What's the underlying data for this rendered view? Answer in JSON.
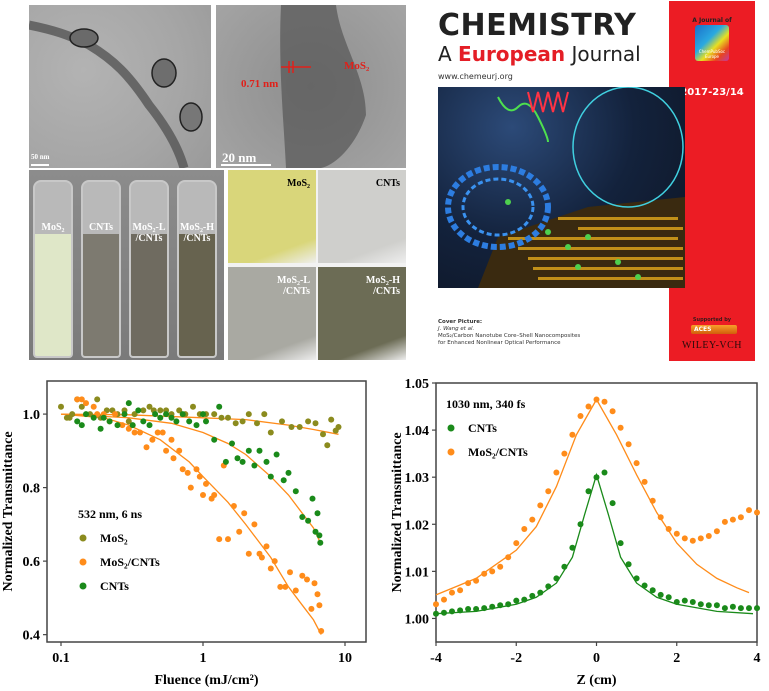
{
  "tem_images": {
    "left": {
      "scale_bar": "50 nm"
    },
    "right": {
      "scale_bar": "20 nm",
      "spacing_label": "0.71 nm",
      "material_label": "MoS₂"
    }
  },
  "vials": [
    {
      "label_line1": "MoS₂",
      "label_line2": "",
      "liquid": "#dfe7c8"
    },
    {
      "label_line1": "CNTs",
      "label_line2": "",
      "liquid": "#7d7a70"
    },
    {
      "label_line1": "MoS₂-L",
      "label_line2": "/CNTs",
      "liquid": "#6f6b60"
    },
    {
      "label_line1": "MoS₂-H",
      "label_line2": "/CNTs",
      "liquid": "#67634f"
    }
  ],
  "films": [
    {
      "label_line1": "MoS₂",
      "label_line2": "",
      "color": "#d9d67a"
    },
    {
      "label_line1": "CNTs",
      "label_line2": "",
      "color": "#cfcfcc"
    },
    {
      "label_line1": "MoS₂-L",
      "label_line2": "/CNTs",
      "color": "#a9a9a2"
    },
    {
      "label_line1": "MoS₂-H",
      "label_line2": "/CNTs",
      "color": "#6c6c55"
    }
  ],
  "cover": {
    "title": "CHEMISTRY",
    "subtitle_a": "A ",
    "subtitle_b": "European",
    "subtitle_c": " Journal",
    "url": "www.chemeurj.org",
    "journal_of": "A Journal of",
    "society": "ChemPubSoc Europe",
    "issue": "2017-23/14",
    "credit_heading": "Cover Picture:",
    "credit_author": "J. Wang et al.",
    "credit_title_1": "MoS₂/Carbon Nanotube Core–Shell Nanocomposites",
    "credit_title_2": "for Enhanced Nonlinear Optical Performance",
    "supported_by": "Supported by",
    "aces": "ACES",
    "publisher": "WILEY-VCH",
    "accent": "#ec1c24"
  },
  "chart_data": [
    {
      "type": "scatter",
      "title": "532 nm, 6 ns",
      "xlabel": "Fluence (mJ/cm²)",
      "ylabel": "Normalized Transmittance",
      "xscale": "log",
      "xlim": [
        0.085,
        14
      ],
      "ylim": [
        0.38,
        1.09
      ],
      "xticks": [
        0.1,
        1,
        10
      ],
      "xtick_labels": [
        "0.1",
        "1",
        "10"
      ],
      "yticks": [
        0.4,
        0.6,
        0.8,
        1.0
      ],
      "ytick_labels": [
        "0.4",
        "0.6",
        "0.8",
        "1.0"
      ],
      "legend_position": "middle-left",
      "series": [
        {
          "name": "MoS₂",
          "color": "#8b8b1e",
          "x": [
            0.1,
            0.11,
            0.115,
            0.12,
            0.13,
            0.14,
            0.16,
            0.18,
            0.19,
            0.21,
            0.23,
            0.25,
            0.28,
            0.3,
            0.33,
            0.38,
            0.42,
            0.45,
            0.5,
            0.55,
            0.6,
            0.68,
            0.75,
            0.85,
            0.95,
            1.05,
            1.2,
            1.35,
            1.5,
            1.7,
            1.9,
            2.1,
            2.4,
            2.7,
            3.0,
            3.6,
            4.2,
            4.8,
            5.5,
            6.2,
            7.0,
            7.5,
            8.0,
            8.6,
            9.0
          ],
          "y": [
            1.02,
            0.99,
            0.99,
            1.0,
            1.04,
            1.02,
            1.0,
            1.04,
            0.99,
            1.01,
            1.01,
            1.0,
            1.01,
            0.98,
            1.0,
            1.01,
            1.02,
            1.01,
            1.01,
            1.01,
            1.0,
            1.01,
            1.0,
            1.02,
            1.0,
            1.0,
            1.0,
            0.99,
            0.99,
            0.975,
            0.98,
            1.0,
            0.975,
            1.0,
            0.95,
            0.98,
            0.965,
            0.965,
            0.98,
            0.975,
            0.945,
            0.915,
            0.985,
            0.955,
            0.965
          ],
          "fit_x": [
            0.1,
            0.3,
            1,
            2,
            4,
            6,
            9
          ],
          "fit_y": [
            1.0,
            0.998,
            0.99,
            0.985,
            0.97,
            0.958,
            0.945
          ]
        },
        {
          "name": "MoS₂/CNTs",
          "color": "#ff8c1a",
          "x": [
            0.13,
            0.14,
            0.15,
            0.17,
            0.18,
            0.2,
            0.22,
            0.24,
            0.27,
            0.3,
            0.33,
            0.36,
            0.4,
            0.44,
            0.48,
            0.52,
            0.55,
            0.6,
            0.62,
            0.68,
            0.72,
            0.78,
            0.82,
            0.9,
            0.95,
            1.0,
            1.05,
            1.15,
            1.2,
            1.3,
            1.4,
            1.5,
            1.65,
            1.8,
            1.95,
            2.1,
            2.3,
            2.5,
            2.6,
            2.8,
            3.0,
            3.2,
            3.5,
            3.8,
            4.1,
            4.5,
            5.0,
            5.4,
            5.8,
            6.1,
            6.4,
            6.6,
            6.8
          ],
          "y": [
            1.04,
            1.04,
            1.03,
            1.02,
            1.0,
            1.0,
            0.98,
            1.0,
            0.97,
            0.96,
            0.95,
            0.95,
            0.91,
            0.93,
            0.95,
            0.95,
            0.9,
            0.93,
            0.88,
            0.9,
            0.85,
            0.84,
            0.8,
            0.85,
            0.83,
            0.78,
            0.81,
            0.77,
            0.78,
            0.66,
            0.86,
            0.66,
            0.75,
            0.68,
            0.73,
            0.62,
            0.7,
            0.62,
            0.61,
            0.64,
            0.58,
            0.6,
            0.53,
            0.53,
            0.57,
            0.52,
            0.56,
            0.55,
            0.47,
            0.54,
            0.51,
            0.48,
            0.41
          ],
          "fit_x": [
            0.1,
            0.2,
            0.3,
            0.5,
            0.8,
            1,
            1.5,
            2,
            3,
            4,
            5,
            6,
            6.8
          ],
          "fit_y": [
            1.0,
            0.99,
            0.97,
            0.93,
            0.87,
            0.83,
            0.76,
            0.7,
            0.61,
            0.53,
            0.48,
            0.44,
            0.4
          ]
        },
        {
          "name": "CNTs",
          "color": "#1a8a1a",
          "x": [
            0.13,
            0.14,
            0.15,
            0.17,
            0.19,
            0.2,
            0.22,
            0.25,
            0.28,
            0.3,
            0.32,
            0.35,
            0.38,
            0.42,
            0.46,
            0.5,
            0.55,
            0.6,
            0.65,
            0.72,
            0.8,
            0.9,
            1.0,
            1.05,
            1.2,
            1.3,
            1.45,
            1.6,
            1.75,
            1.9,
            2.1,
            2.3,
            2.5,
            2.8,
            3.0,
            3.3,
            3.7,
            4.0,
            4.5,
            5.0,
            5.5,
            5.9,
            6.2,
            6.4,
            6.6,
            6.7
          ],
          "y": [
            0.98,
            0.97,
            1.0,
            0.99,
            0.96,
            0.99,
            0.98,
            0.97,
            1.0,
            1.03,
            0.97,
            1.01,
            0.98,
            0.97,
            1.0,
            0.99,
            1.0,
            0.99,
            0.98,
            1.0,
            0.98,
            0.97,
            1.0,
            0.98,
            0.93,
            1.02,
            0.87,
            0.92,
            0.88,
            0.87,
            0.9,
            0.86,
            0.9,
            0.87,
            0.83,
            0.89,
            0.82,
            0.84,
            0.79,
            0.72,
            0.71,
            0.77,
            0.68,
            0.73,
            0.67,
            0.65
          ],
          "fit_x": [
            0.1,
            0.3,
            0.6,
            1,
            1.5,
            2,
            3,
            4,
            5,
            6,
            6.7
          ],
          "fit_y": [
            1.0,
            0.99,
            0.975,
            0.95,
            0.92,
            0.89,
            0.83,
            0.78,
            0.73,
            0.69,
            0.65
          ]
        }
      ]
    },
    {
      "type": "scatter",
      "title": "1030 nm, 340 fs",
      "xlabel": "Z (cm)",
      "ylabel": "Normalized Transmittance",
      "xlim": [
        -4,
        4
      ],
      "ylim": [
        0.995,
        1.05
      ],
      "xticks": [
        -4,
        -2,
        0,
        2,
        4
      ],
      "xtick_labels": [
        "-4",
        "-2",
        "0",
        "2",
        "4"
      ],
      "yticks": [
        1.0,
        1.01,
        1.02,
        1.03,
        1.04,
        1.05
      ],
      "ytick_labels": [
        "1.00",
        "1.01",
        "1.02",
        "1.03",
        "1.04",
        "1.05"
      ],
      "legend_position": "top-left",
      "series": [
        {
          "name": "CNTs",
          "color": "#1a8a1a",
          "x": [
            -4,
            -3.8,
            -3.6,
            -3.4,
            -3.2,
            -3.0,
            -2.8,
            -2.6,
            -2.4,
            -2.2,
            -2.0,
            -1.8,
            -1.6,
            -1.4,
            -1.2,
            -1.0,
            -0.8,
            -0.6,
            -0.4,
            -0.2,
            0,
            0.2,
            0.4,
            0.6,
            0.8,
            1.0,
            1.2,
            1.4,
            1.6,
            1.8,
            2.0,
            2.2,
            2.4,
            2.6,
            2.8,
            3.0,
            3.2,
            3.4,
            3.6,
            3.8,
            4.0
          ],
          "y": [
            1.001,
            1.0012,
            1.0015,
            1.0017,
            1.002,
            1.002,
            1.0022,
            1.0025,
            1.0028,
            1.003,
            1.0038,
            1.004,
            1.0048,
            1.0055,
            1.0068,
            1.0085,
            1.011,
            1.015,
            1.02,
            1.027,
            1.03,
            1.031,
            1.0245,
            1.016,
            1.0115,
            1.0085,
            1.007,
            1.006,
            1.005,
            1.0045,
            1.0035,
            1.0038,
            1.0035,
            1.003,
            1.0028,
            1.0028,
            1.0022,
            1.0025,
            1.0022,
            1.0022,
            1.0022
          ],
          "fit_x": [
            -4,
            -3,
            -2,
            -1.5,
            -1,
            -0.6,
            -0.3,
            0,
            0.3,
            0.6,
            1,
            1.5,
            2,
            3,
            3.9
          ],
          "fit_y": [
            1.001,
            1.0015,
            1.003,
            1.0045,
            1.0075,
            1.013,
            1.022,
            1.0305,
            1.022,
            1.013,
            1.0075,
            1.0045,
            1.003,
            1.0015,
            1.001
          ]
        },
        {
          "name": "MoS₂/CNTs",
          "color": "#ff8c1a",
          "x": [
            -4,
            -3.8,
            -3.6,
            -3.4,
            -3.2,
            -3.0,
            -2.8,
            -2.6,
            -2.4,
            -2.2,
            -2.0,
            -1.8,
            -1.6,
            -1.4,
            -1.2,
            -1.0,
            -0.8,
            -0.6,
            -0.4,
            -0.2,
            0,
            0.2,
            0.4,
            0.6,
            0.8,
            1.0,
            1.2,
            1.4,
            1.6,
            1.8,
            2.0,
            2.2,
            2.4,
            2.6,
            2.8,
            3.0,
            3.2,
            3.4,
            3.6,
            3.8,
            4.0
          ],
          "y": [
            1.003,
            1.004,
            1.0055,
            1.006,
            1.0075,
            1.008,
            1.0095,
            1.01,
            1.011,
            1.013,
            1.016,
            1.019,
            1.021,
            1.024,
            1.027,
            1.031,
            1.035,
            1.039,
            1.043,
            1.045,
            1.0465,
            1.046,
            1.044,
            1.0405,
            1.037,
            1.033,
            1.029,
            1.025,
            1.0215,
            1.019,
            1.018,
            1.017,
            1.0165,
            1.017,
            1.0175,
            1.0185,
            1.0205,
            1.021,
            1.0215,
            1.023,
            1.0225
          ],
          "fit_x": [
            -4,
            -3,
            -2,
            -1.5,
            -1,
            -0.5,
            0,
            0.5,
            1,
            1.5,
            2,
            2.5,
            3,
            3.5,
            3.8
          ],
          "fit_y": [
            1.005,
            1.0085,
            1.0145,
            1.0195,
            1.028,
            1.039,
            1.0465,
            1.039,
            1.0305,
            1.0225,
            1.016,
            1.0115,
            1.0085,
            1.0065,
            1.0055
          ]
        }
      ]
    }
  ]
}
